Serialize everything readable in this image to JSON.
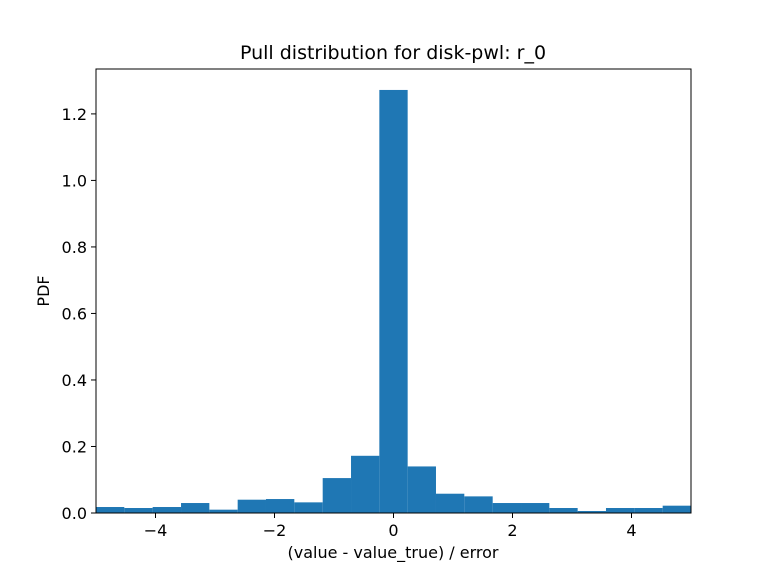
{
  "chart_data": {
    "type": "bar",
    "subtype": "histogram",
    "title": "Pull distribution for disk-pwl: r_0",
    "xlabel": "(value - value_true) / error",
    "ylabel": "PDF",
    "xlim": [
      -5,
      5
    ],
    "ylim": [
      0,
      1.335
    ],
    "xticks": [
      -4,
      -2,
      0,
      2,
      4
    ],
    "xtick_labels": [
      "−4",
      "−2",
      "0",
      "2",
      "4"
    ],
    "yticks": [
      0.0,
      0.2,
      0.4,
      0.6,
      0.8,
      1.0,
      1.2
    ],
    "ytick_labels": [
      "0.0",
      "0.2",
      "0.4",
      "0.6",
      "0.8",
      "1.0",
      "1.2"
    ],
    "bin_edges": [
      -5.0,
      -4.524,
      -4.048,
      -3.571,
      -3.095,
      -2.619,
      -2.143,
      -1.667,
      -1.19,
      -0.714,
      -0.238,
      0.238,
      0.714,
      1.19,
      1.667,
      2.143,
      2.619,
      3.095,
      3.571,
      4.048,
      4.524,
      5.0
    ],
    "values": [
      0.018,
      0.015,
      0.018,
      0.03,
      0.01,
      0.04,
      0.042,
      0.032,
      0.105,
      0.172,
      1.272,
      0.14,
      0.058,
      0.05,
      0.03,
      0.03,
      0.015,
      0.006,
      0.015,
      0.015,
      0.022
    ],
    "grid": false,
    "legend": "none",
    "bar_color": "#1f77b4"
  }
}
